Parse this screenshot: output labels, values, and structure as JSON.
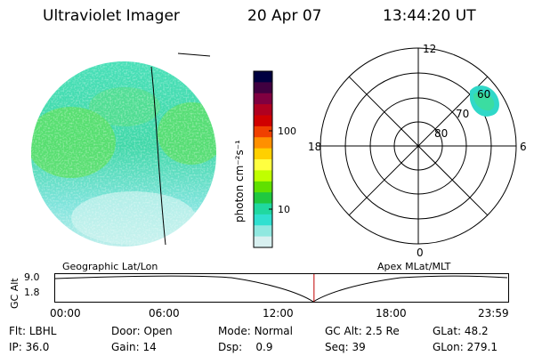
{
  "header": {
    "title": "Ultraviolet Imager",
    "date": "20 Apr 07",
    "time": "13:44:20 UT"
  },
  "colorbar": {
    "unit_label": "photon cm⁻²s⁻¹",
    "ticks": [
      "100",
      "10"
    ],
    "colors": [
      "#000040",
      "#400040",
      "#800040",
      "#b00020",
      "#d00000",
      "#f04000",
      "#ff9000",
      "#ffd000",
      "#ffff40",
      "#c0ff00",
      "#60e000",
      "#20c840",
      "#20d8a0",
      "#30e0d0",
      "#90e8e0",
      "#d8f0f0"
    ]
  },
  "polar_plot": {
    "mlt_labels": {
      "top": "12",
      "left": "18",
      "right": "6",
      "bottom": "0"
    },
    "lat_labels": [
      "80",
      "70",
      "60"
    ]
  },
  "timeline": {
    "ylabel": "GC Alt",
    "yticks": [
      "9.0",
      "1.8"
    ],
    "left_label": "Geographic Lat/Lon",
    "right_label": "Apex MLat/MLT",
    "xticks": [
      "00:00",
      "06:00",
      "12:00",
      "18:00",
      "23:59"
    ],
    "marker_fraction": 0.5725,
    "marker_color": "#c00000"
  },
  "info": {
    "row1": [
      {
        "key": "Flt:",
        "value": "LBHL"
      },
      {
        "key": "Door:",
        "value": "Open"
      },
      {
        "key": "Mode:",
        "value": "Normal"
      },
      {
        "key": "GC Alt:",
        "value": "2.5 Re"
      },
      {
        "key": "GLat:",
        "value": "48.2"
      }
    ],
    "row2": [
      {
        "key": "IP:",
        "value": "36.0"
      },
      {
        "key": "Gain:",
        "value": "14"
      },
      {
        "key": "Dsp:",
        "value": "0.9"
      },
      {
        "key": "Seq:",
        "value": "39"
      },
      {
        "key": "GLon:",
        "value": "279.1"
      }
    ]
  }
}
